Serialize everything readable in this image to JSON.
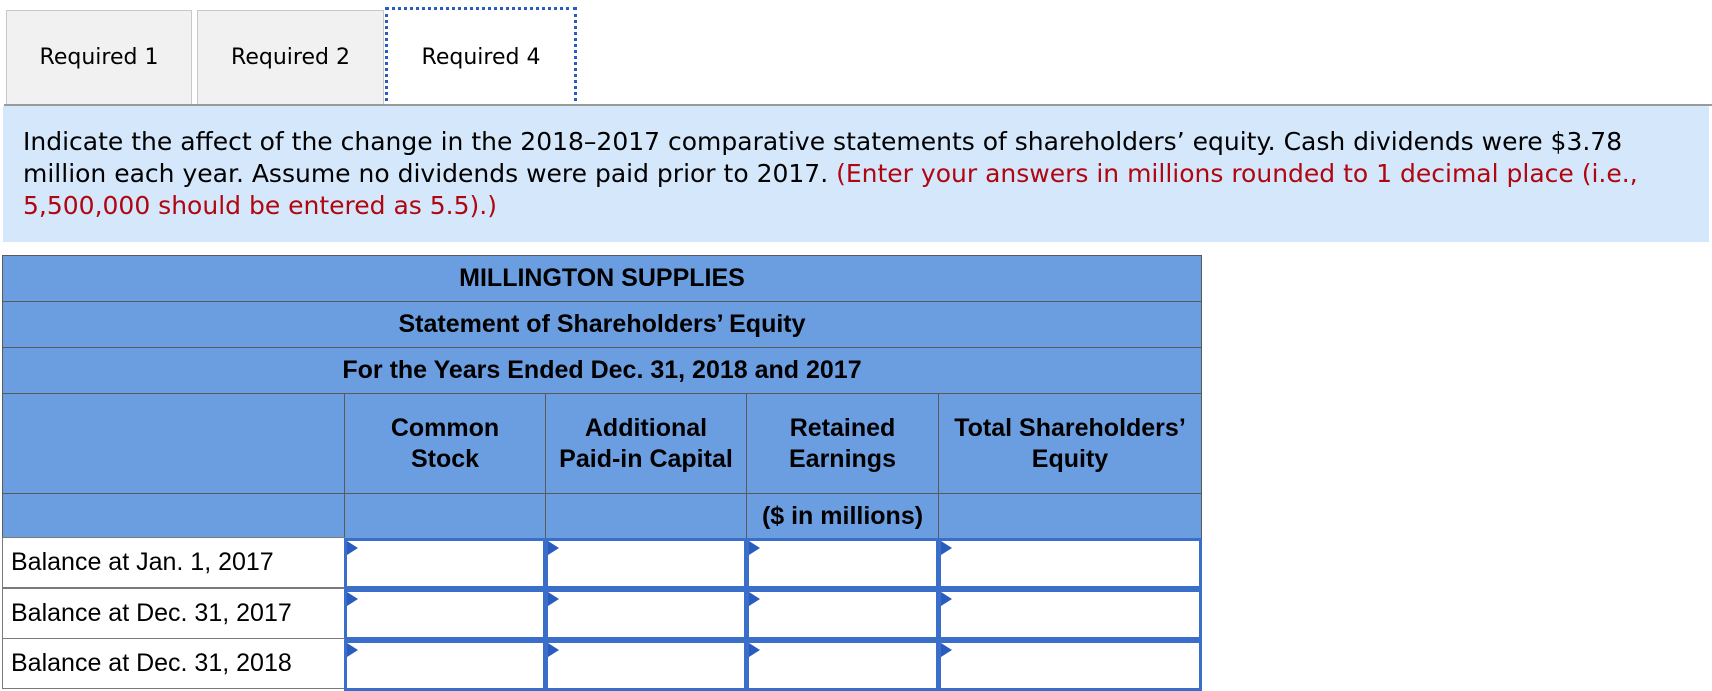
{
  "tabs": [
    {
      "label": "Required 1"
    },
    {
      "label": "Required 2"
    },
    {
      "label": "Required 4"
    }
  ],
  "instructions": {
    "text": "Indicate the affect of the change in the 2018–2017 comparative statements of shareholders’ equity. Cash dividends were $3.78 million each year. Assume no dividends were paid prior to 2017.",
    "note": "(Enter your answers in millions rounded to 1 decimal place (i.e., 5,500,000 should be entered as 5.5).)"
  },
  "statement": {
    "company": "MILLINGTON SUPPLIES",
    "title": "Statement of Shareholders’ Equity",
    "period": "For the Years Ended Dec. 31, 2018 and 2017",
    "columns": {
      "common_stock": [
        "Common",
        "Stock"
      ],
      "apic": [
        "Additional",
        "Paid-in Capital"
      ],
      "retained": [
        "Retained",
        "Earnings"
      ],
      "total": [
        "Total Shareholders’",
        "Equity"
      ]
    },
    "unit": "($ in millions)",
    "rows": [
      {
        "label": "Balance at Jan. 1, 2017",
        "values": [
          "",
          "",
          "",
          ""
        ]
      },
      {
        "label": "Balance at Dec. 31, 2017",
        "values": [
          "",
          "",
          "",
          ""
        ]
      },
      {
        "label": "Balance at Dec. 31, 2018",
        "values": [
          "",
          "",
          "",
          ""
        ]
      }
    ]
  },
  "colors": {
    "header_bg": "#6b9de1",
    "instructions_bg": "#d5e7fb",
    "note_red": "#b00610",
    "active_tab_border": "#2a5bbf"
  }
}
